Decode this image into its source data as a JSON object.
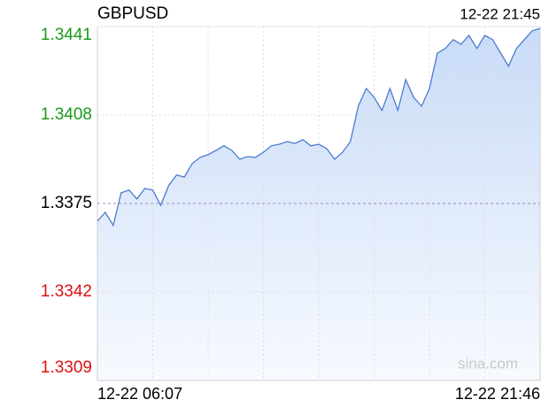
{
  "chart_data": {
    "type": "line",
    "title": "GBPUSD",
    "timestamp": "12-22 21:45",
    "watermark": "sina.com",
    "x_labels": [
      "12-22 06:07",
      "12-22 21:46"
    ],
    "series": [
      {
        "name": "GBPUSD",
        "color": "#4a7bd0",
        "values": [
          1.33684,
          1.33717,
          1.33668,
          1.3379,
          1.338,
          1.33767,
          1.33806,
          1.338,
          1.33743,
          1.33816,
          1.33856,
          1.33849,
          1.33899,
          1.33922,
          1.33932,
          1.33948,
          1.33965,
          1.33948,
          1.33915,
          1.33925,
          1.33922,
          1.33941,
          1.33965,
          1.33971,
          1.33981,
          1.33974,
          1.33988,
          1.33965,
          1.33971,
          1.33955,
          1.33915,
          1.33941,
          1.33981,
          1.34113,
          1.34179,
          1.34146,
          1.34097,
          1.34179,
          1.34097,
          1.34212,
          1.34146,
          1.34113,
          1.34179,
          1.34311,
          1.34328,
          1.34361,
          1.34344,
          1.34377,
          1.34328,
          1.34377,
          1.34361,
          1.34311,
          1.34262,
          1.34328,
          1.34361,
          1.34394,
          1.34403
        ]
      }
    ],
    "ylim": [
      1.3309,
      1.3441
    ],
    "yticks": [
      1.3309,
      1.3342,
      1.3375,
      1.3408,
      1.3441
    ],
    "reference": 1.3375,
    "up_color": "#1a9a1a",
    "down_color": "#e01010",
    "flat_color": "#000000",
    "grid": true
  }
}
